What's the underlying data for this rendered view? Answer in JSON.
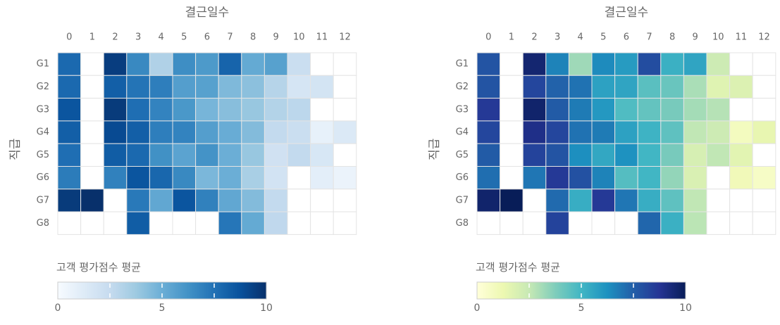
{
  "chart_data": [
    {
      "type": "heatmap",
      "title": "결근일수",
      "ylabel": "직급",
      "x_categories": [
        "0",
        "1",
        "2",
        "3",
        "4",
        "5",
        "6",
        "7",
        "8",
        "9",
        "10",
        "11",
        "12"
      ],
      "y_categories": [
        "G1",
        "G2",
        "G3",
        "G4",
        "G5",
        "G6",
        "G7",
        "G8"
      ],
      "colorscale": "Blues",
      "colorbar": {
        "title": "고객 평가점수 평균",
        "min": 0,
        "max": 10,
        "ticks": [
          0,
          5,
          10
        ]
      },
      "values": [
        [
          7.8,
          null,
          9.5,
          6.6,
          3.2,
          6.4,
          5.9,
          8.0,
          5.2,
          5.6,
          2.3,
          null,
          null
        ],
        [
          7.8,
          null,
          8.2,
          7.4,
          7.0,
          5.7,
          5.6,
          4.5,
          4.2,
          3.0,
          1.7,
          1.8,
          null
        ],
        [
          8.6,
          null,
          9.6,
          7.6,
          6.8,
          6.0,
          4.7,
          4.3,
          3.9,
          3.1,
          2.8,
          null,
          null
        ],
        [
          8.2,
          null,
          9.0,
          8.2,
          7.0,
          6.8,
          5.7,
          5.1,
          4.4,
          2.6,
          2.3,
          0.8,
          1.4
        ],
        [
          7.6,
          null,
          8.3,
          7.8,
          6.3,
          5.5,
          6.2,
          5.0,
          3.9,
          2.0,
          2.6,
          1.6,
          null
        ],
        [
          7.1,
          null,
          6.9,
          8.6,
          7.9,
          6.6,
          4.6,
          5.0,
          3.4,
          1.9,
          null,
          1.0,
          0.6
        ],
        [
          9.6,
          10.5,
          null,
          7.2,
          5.3,
          8.6,
          6.9,
          5.3,
          4.4,
          2.6,
          null,
          null,
          null
        ],
        [
          null,
          null,
          null,
          8.3,
          null,
          null,
          null,
          7.3,
          5.2,
          2.7,
          null,
          null,
          null
        ]
      ]
    },
    {
      "type": "heatmap",
      "title": "결근일수",
      "ylabel": "직급",
      "x_categories": [
        "0",
        "1",
        "2",
        "3",
        "4",
        "5",
        "6",
        "7",
        "8",
        "9",
        "10",
        "11",
        "12"
      ],
      "y_categories": [
        "G1",
        "G2",
        "G3",
        "G4",
        "G5",
        "G6",
        "G7",
        "G8"
      ],
      "colorscale": "YlGnBu",
      "colorbar": {
        "title": "고객 평가점수 평균",
        "min": 0,
        "max": 10,
        "ticks": [
          0,
          5,
          10
        ]
      },
      "values": [
        [
          7.8,
          null,
          9.5,
          6.6,
          3.2,
          6.4,
          5.9,
          8.0,
          5.2,
          5.6,
          2.3,
          null,
          null
        ],
        [
          7.8,
          null,
          8.2,
          7.4,
          7.0,
          5.7,
          5.6,
          4.5,
          4.2,
          3.0,
          1.7,
          1.8,
          null
        ],
        [
          8.6,
          null,
          9.6,
          7.6,
          6.8,
          6.0,
          4.7,
          4.3,
          3.9,
          3.1,
          2.8,
          null,
          null
        ],
        [
          8.2,
          null,
          9.0,
          8.2,
          7.0,
          6.8,
          5.7,
          5.1,
          4.4,
          2.6,
          2.3,
          0.8,
          1.4
        ],
        [
          7.6,
          null,
          8.3,
          7.8,
          6.3,
          5.5,
          6.2,
          5.0,
          3.9,
          2.0,
          2.6,
          1.6,
          null
        ],
        [
          7.1,
          null,
          6.9,
          8.6,
          7.9,
          6.6,
          4.6,
          5.0,
          3.4,
          1.9,
          null,
          1.0,
          0.6
        ],
        [
          9.6,
          10.5,
          null,
          7.2,
          5.3,
          8.6,
          6.9,
          5.3,
          4.4,
          2.6,
          null,
          null,
          null
        ],
        [
          null,
          null,
          null,
          8.3,
          null,
          null,
          null,
          7.3,
          5.2,
          2.7,
          null,
          null,
          null
        ]
      ]
    }
  ]
}
